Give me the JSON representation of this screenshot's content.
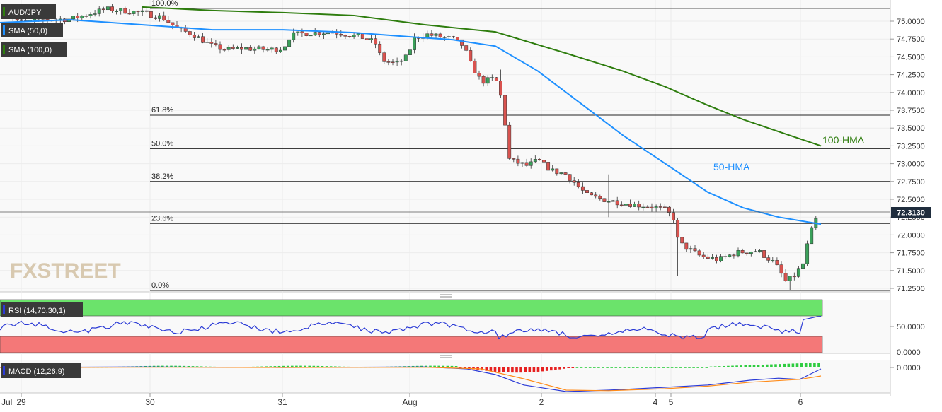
{
  "chart_data": {
    "type": "candlestick",
    "instrument": "AUD/JPY",
    "last_price": "72.3130",
    "overlays": [
      {
        "name": "SMA (50,0)",
        "color": "#1e90ff"
      },
      {
        "name": "SMA (100,0)",
        "color": "#2e7d0e"
      }
    ],
    "annotations": {
      "hma50": "50-HMA",
      "hma100": "100-HMA"
    },
    "price_axis": {
      "ylim": [
        71.16,
        75.27
      ],
      "ticks": [
        "75.0000",
        "74.7500",
        "74.5000",
        "74.2500",
        "74.0000",
        "73.7500",
        "73.5000",
        "73.2500",
        "73.0000",
        "72.7500",
        "72.5000",
        "72.2500",
        "72.0000",
        "71.7500",
        "71.5000",
        "71.2500"
      ]
    },
    "x_axis": {
      "labels": [
        "Jul",
        "29",
        "30",
        "31",
        "Aug",
        "2",
        "4",
        "5",
        "6"
      ]
    },
    "fibonacci": [
      {
        "label": "100.0%",
        "price": 75.18
      },
      {
        "label": "61.8%",
        "price": 73.68
      },
      {
        "label": "50.0%",
        "price": 73.21
      },
      {
        "label": "38.2%",
        "price": 72.75
      },
      {
        "label": "23.6%",
        "price": 72.16
      },
      {
        "label": "0.0%",
        "price": 71.22
      }
    ],
    "rsi": {
      "label": "RSI (14,70,30,1)",
      "ticks": [
        "50.0000",
        "0.0000"
      ],
      "overbought": 70,
      "oversold": 30
    },
    "macd": {
      "label": "MACD (12,26,9)",
      "ticks": [
        "0.0000"
      ]
    },
    "watermark": "FXSTREET",
    "colors": {
      "up": "#3aa15a",
      "down": "#d9534f",
      "hma50": "#1e90ff",
      "hma100": "#2e7d0e",
      "rsi_line": "#2b3bd6",
      "macd_line": "#2b3bd6",
      "signal_line": "#ff8c1a"
    }
  }
}
